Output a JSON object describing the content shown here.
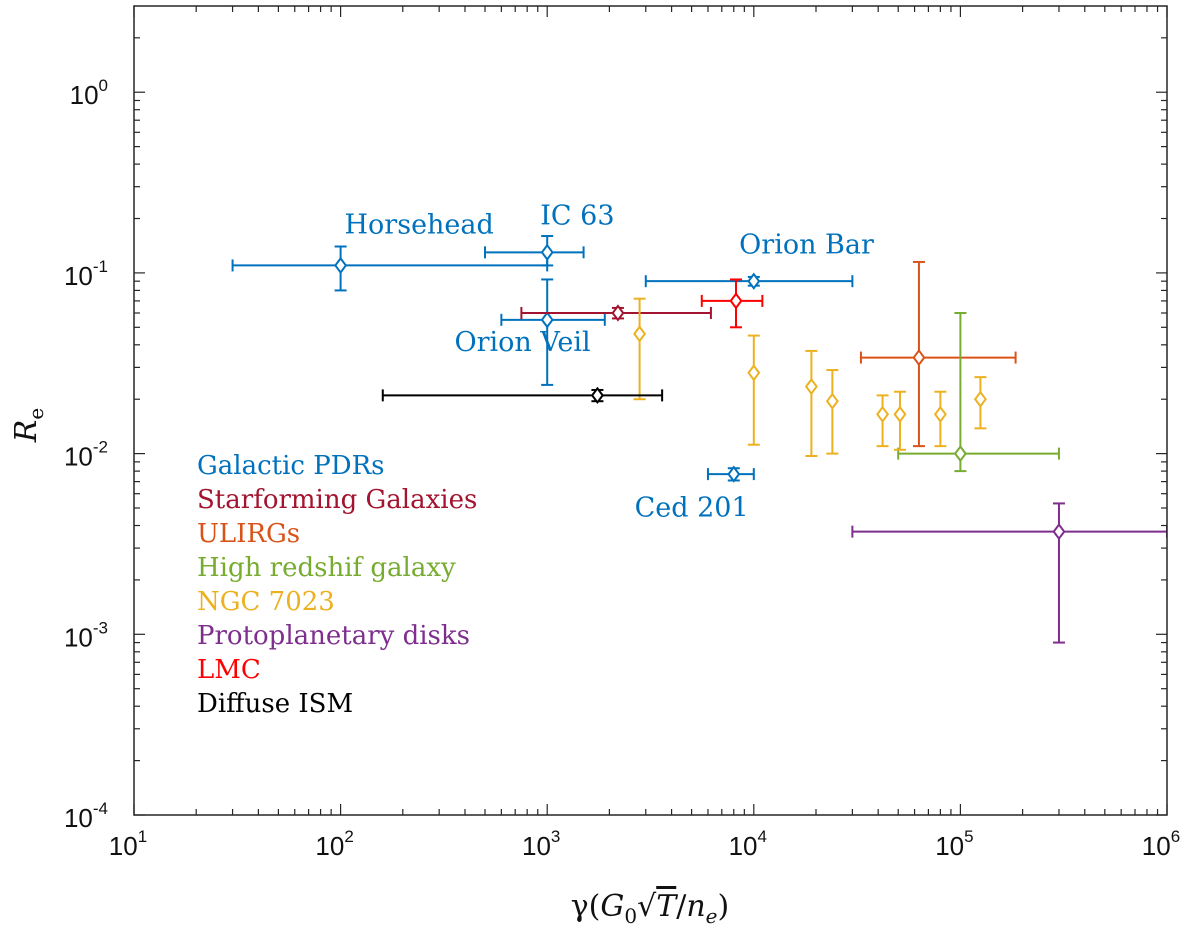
{
  "chart_data": {
    "type": "scatter",
    "xscale": "log",
    "yscale": "log",
    "xlim": [
      10,
      1000000
    ],
    "ylim": [
      0.0001,
      3.0
    ],
    "x_ticks": [
      {
        "base": "10",
        "exp": "1",
        "value": 10
      },
      {
        "base": "10",
        "exp": "2",
        "value": 100
      },
      {
        "base": "10",
        "exp": "3",
        "value": 1000
      },
      {
        "base": "10",
        "exp": "4",
        "value": 10000
      },
      {
        "base": "10",
        "exp": "5",
        "value": 100000
      },
      {
        "base": "10",
        "exp": "6",
        "value": 1000000
      }
    ],
    "y_ticks": [
      {
        "base": "10",
        "exp": "0",
        "value": 1
      },
      {
        "base": "10",
        "exp": "-1",
        "value": 0.1
      },
      {
        "base": "10",
        "exp": "-2",
        "value": 0.01
      },
      {
        "base": "10",
        "exp": "-3",
        "value": 0.001
      },
      {
        "base": "10",
        "exp": "-4",
        "value": 0.0001
      }
    ],
    "xlabel": "γ(G₀√T/nₑ)",
    "ylabel": "Rₑ",
    "xlabel_parts": {
      "gamma": "γ(",
      "g": "G",
      "g_sub": "0",
      "sqrt": "√",
      "t": "T",
      "slash": "/",
      "n": "n",
      "n_sub": "e",
      "close": ")"
    },
    "ylabel_parts": {
      "r": "R",
      "r_sub": "e"
    },
    "colors": {
      "galactic": "#0072BD",
      "starforming": "#A2142F",
      "ulirg": "#D95319",
      "highz": "#77AC30",
      "ngc7023": "#EDB120",
      "disks": "#7E2F8E",
      "lmc": "#FF0000",
      "diffuse": "#000000"
    },
    "series": [
      {
        "name": "Galactic PDRs",
        "group": "galactic",
        "points": [
          {
            "x": 100,
            "y": 0.11,
            "xerr": [
              30,
              1000
            ],
            "yerr": [
              0.08,
              0.14
            ]
          },
          {
            "x": 1000,
            "y": 0.13,
            "xerr": [
              500,
              1500
            ],
            "yerr": [
              0.11,
              0.16
            ]
          },
          {
            "x": 1000,
            "y": 0.055,
            "xerr": [
              600,
              1900
            ],
            "yerr": [
              0.024,
              0.092
            ]
          },
          {
            "x": 10000,
            "y": 0.09,
            "xerr": [
              3000,
              30000
            ],
            "yerr": [
              0.085,
              0.095
            ]
          },
          {
            "x": 8000,
            "y": 0.0077,
            "xerr": [
              6000,
              10000
            ],
            "yerr": [
              0.0071,
              0.0083
            ]
          }
        ]
      },
      {
        "name": "Starforming Galaxies",
        "group": "starforming",
        "points": [
          {
            "x": 2200,
            "y": 0.06,
            "xerr": [
              750,
              6200
            ],
            "yerr": [
              0.056,
              0.064
            ]
          }
        ]
      },
      {
        "name": "ULIRGs",
        "group": "ulirg",
        "points": [
          {
            "x": 63000,
            "y": 0.034,
            "xerr": [
              33000,
              185000
            ],
            "yerr": [
              0.011,
              0.115
            ]
          }
        ]
      },
      {
        "name": "High redshif galaxy",
        "group": "highz",
        "points": [
          {
            "x": 100000,
            "y": 0.01,
            "xerr": [
              50000,
              300000
            ],
            "yerr": [
              0.008,
              0.06
            ]
          }
        ]
      },
      {
        "name": "NGC 7023",
        "group": "ngc7023",
        "points": [
          {
            "x": 2800,
            "y": 0.046,
            "yerr": [
              0.02,
              0.072
            ]
          },
          {
            "x": 10000,
            "y": 0.028,
            "yerr": [
              0.0112,
              0.045
            ]
          },
          {
            "x": 19000,
            "y": 0.0235,
            "yerr": [
              0.0097,
              0.037
            ]
          },
          {
            "x": 24000,
            "y": 0.0195,
            "yerr": [
              0.01,
              0.029
            ]
          },
          {
            "x": 42000,
            "y": 0.0165,
            "yerr": [
              0.011,
              0.021
            ]
          },
          {
            "x": 51000,
            "y": 0.0165,
            "yerr": [
              0.0105,
              0.022
            ]
          },
          {
            "x": 80000,
            "y": 0.0165,
            "yerr": [
              0.011,
              0.022
            ]
          },
          {
            "x": 125000,
            "y": 0.02,
            "yerr": [
              0.0138,
              0.0265
            ]
          }
        ]
      },
      {
        "name": "Protoplanetary disks",
        "group": "disks",
        "points": [
          {
            "x": 300000,
            "y": 0.0037,
            "xerr": [
              30000,
              1000000
            ],
            "yerr": [
              0.0009,
              0.0053
            ]
          }
        ]
      },
      {
        "name": "LMC",
        "group": "lmc",
        "points": [
          {
            "x": 8200,
            "y": 0.07,
            "xerr": [
              5600,
              11000
            ],
            "yerr": [
              0.05,
              0.092
            ]
          }
        ]
      },
      {
        "name": "Diffuse ISM",
        "group": "diffuse",
        "points": [
          {
            "x": 1750,
            "y": 0.021,
            "xerr": [
              160,
              3600
            ],
            "yerr": [
              0.0195,
              0.0225
            ]
          }
        ]
      }
    ],
    "annotations": [
      {
        "id": "horsehead",
        "text": "Horsehead",
        "group": "galactic",
        "x": 240,
        "y": 0.165
      },
      {
        "id": "ic63",
        "text": "IC 63",
        "group": "galactic",
        "x": 1400,
        "y": 0.185
      },
      {
        "id": "orion-bar",
        "text": "Orion Bar",
        "group": "galactic",
        "x": 18000,
        "y": 0.128
      },
      {
        "id": "orion-veil",
        "text": "Orion Veil",
        "group": "galactic",
        "x": 760,
        "y": 0.037
      },
      {
        "id": "ced201",
        "text": "Ced 201",
        "group": "galactic",
        "x": 5000,
        "y": 0.0045
      }
    ],
    "legend": {
      "placement": "lower-left",
      "entries": [
        {
          "label": "Galactic PDRs",
          "group": "galactic"
        },
        {
          "label": "Starforming Galaxies",
          "group": "starforming"
        },
        {
          "label": "ULIRGs",
          "group": "ulirg"
        },
        {
          "label": "High redshif galaxy",
          "group": "highz"
        },
        {
          "label": "NGC 7023",
          "group": "ngc7023"
        },
        {
          "label": "Protoplanetary disks",
          "group": "disks"
        },
        {
          "label": "LMC",
          "group": "lmc"
        },
        {
          "label": "Diffuse ISM",
          "group": "diffuse"
        }
      ]
    }
  }
}
